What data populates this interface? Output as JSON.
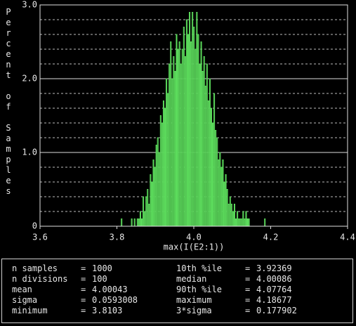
{
  "chart_data": {
    "type": "histogram",
    "xlabel": "max(I(E2:1))",
    "ylabel": "Percent of Samples",
    "bins": [
      3.8103,
      3.8141,
      3.8178,
      3.8216,
      3.8254,
      3.8291,
      3.8329,
      3.8367,
      3.8404,
      3.8442,
      3.8479,
      3.8517,
      3.8555,
      3.8592,
      3.863,
      3.8668,
      3.8705,
      3.8743,
      3.8781,
      3.8818,
      3.8856,
      3.8894,
      3.8931,
      3.8969,
      3.9007,
      3.9044,
      3.9082,
      3.912,
      3.9157,
      3.9195,
      3.9232,
      3.927,
      3.9308,
      3.9345,
      3.9383,
      3.9421,
      3.9458,
      3.9496,
      3.9534,
      3.9571,
      3.9609,
      3.9647,
      3.9684,
      3.9722,
      3.976,
      3.9797,
      3.9835,
      3.9873,
      3.991,
      3.9948,
      3.9985,
      4.0023,
      4.0061,
      4.0098,
      4.0136,
      4.0174,
      4.0211,
      4.0249,
      4.0287,
      4.0324,
      4.0362,
      4.04,
      4.0437,
      4.0475,
      4.0513,
      4.055,
      4.0588,
      4.0626,
      4.0663,
      4.0701,
      4.0738,
      4.0776,
      4.0814,
      4.0851,
      4.0889,
      4.0927,
      4.0964,
      4.1002,
      4.104,
      4.1077,
      4.1115,
      4.1153,
      4.119,
      4.1228,
      4.1266,
      4.1303,
      4.1341,
      4.1379,
      4.1416,
      4.1454,
      4.1491,
      4.1529,
      4.1567,
      4.1604,
      4.1642,
      4.168,
      4.1717,
      4.1755,
      4.1793,
      4.183,
      4.1868
    ],
    "values": [
      0.1,
      0,
      0,
      0,
      0,
      0,
      0,
      0.1,
      0,
      0.1,
      0,
      0.1,
      0.1,
      0.2,
      0.1,
      0.4,
      0.2,
      0.4,
      0.5,
      0.3,
      0.7,
      0.6,
      0.9,
      0.8,
      1.1,
      1.2,
      1.0,
      1.5,
      1.4,
      1.7,
      1.6,
      2.0,
      1.8,
      2.2,
      2.5,
      2.0,
      2.3,
      2.1,
      2.6,
      2.4,
      2.5,
      2.2,
      2.4,
      2.7,
      2.3,
      2.8,
      2.6,
      2.9,
      2.5,
      2.9,
      2.7,
      2.4,
      2.9,
      2.6,
      2.2,
      2.5,
      2.1,
      2.3,
      1.9,
      2.2,
      1.7,
      2.0,
      1.6,
      1.4,
      1.8,
      1.3,
      1.2,
      0.9,
      1.0,
      0.8,
      0.9,
      0.6,
      0.7,
      0.5,
      0.3,
      0.4,
      0.3,
      0.2,
      0.3,
      0.1,
      0.2,
      0.1,
      0.1,
      0.1,
      0.2,
      0.1,
      0.2,
      0.1,
      0.1,
      0,
      0,
      0,
      0,
      0,
      0,
      0,
      0,
      0,
      0,
      0.1
    ],
    "color": "#5ee05e",
    "xlim": [
      3.6,
      4.4
    ],
    "xticks": [
      3.6,
      3.8,
      {
        "value": 4.0,
        "label": "4.0"
      },
      4.2,
      4.4
    ],
    "ylim": [
      0,
      3.0
    ],
    "yticks": [
      0,
      {
        "value": 1.0,
        "label": "1.0"
      },
      {
        "value": 2.0,
        "label": "2.0"
      },
      {
        "value": 3.0,
        "label": "3.0"
      }
    ],
    "yminorticks": [
      0.2,
      0.4,
      0.6,
      0.8,
      1.2,
      1.4,
      1.6,
      1.8,
      2.2,
      2.4,
      2.6,
      2.8
    ],
    "grid": true
  },
  "stats": {
    "separator": "=",
    "left": [
      {
        "label": "n samples",
        "value": 1000
      },
      {
        "label": "n divisions",
        "value": 100
      },
      {
        "label": "mean",
        "value": 4.00043
      },
      {
        "label": "sigma",
        "value": 0.0593008
      },
      {
        "label": "minimum",
        "value": 3.8103
      }
    ],
    "right": [
      {
        "label": "10th %ile",
        "value": 3.92369
      },
      {
        "label": "median",
        "value": 4.00086
      },
      {
        "label": "90th %ile",
        "value": 4.07764
      },
      {
        "label": "maximum",
        "value": 4.18677
      },
      {
        "label": "3*sigma",
        "value": 0.177902
      }
    ]
  }
}
